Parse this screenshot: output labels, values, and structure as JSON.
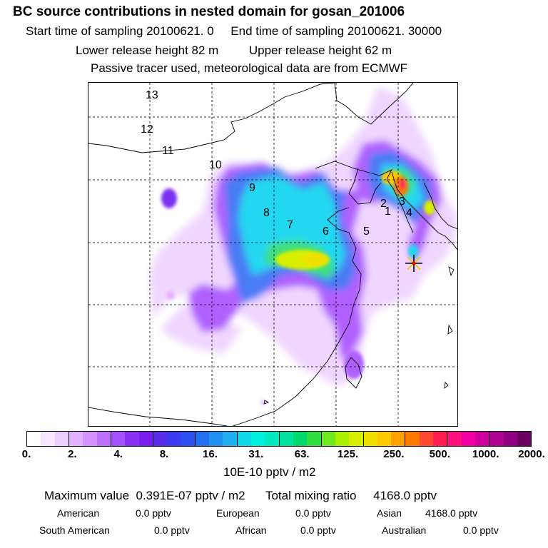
{
  "header": {
    "title": "BC  source contributions in nested domain for gosan_201006",
    "start": "Start time of sampling 20100621.     0",
    "end": "End time of sampling 20100621. 30000",
    "lower": "Lower release height   82 m",
    "upper": "Upper release height   62 m",
    "note": "Passive tracer used, meteorological data are from ECMWF"
  },
  "map": {
    "station_marker": "asterisk-star",
    "trajectory_labels": [
      "13",
      "12",
      "11",
      "10",
      "9",
      "8",
      "7",
      "6",
      "5",
      "4",
      "3",
      "2",
      "1"
    ]
  },
  "colorbar": {
    "ticks": [
      "0.",
      "2.",
      "4.",
      "8.",
      "16.",
      "31.",
      "63.",
      "125.",
      "250.",
      "500.",
      "1000.",
      "2000."
    ],
    "unit": "10E-10 pptv / m2",
    "colors": [
      "#ffffff",
      "#f6e6ff",
      "#edccff",
      "#e2b0ff",
      "#d292ff",
      "#c070ff",
      "#a550ff",
      "#8a30f5",
      "#7a1ef0",
      "#5a2ee8",
      "#3a3af0",
      "#2a50f0",
      "#2070f0",
      "#2090f0",
      "#20b0f0",
      "#10d8e8",
      "#00f0e0",
      "#00e8c0",
      "#00e0a0",
      "#00d870",
      "#30e040",
      "#70e820",
      "#a8f000",
      "#d8f000",
      "#f0e000",
      "#ffc800",
      "#ffa000",
      "#ff7800",
      "#ff4830",
      "#ff2050",
      "#ff1080",
      "#f000a0",
      "#d000a0",
      "#b00090",
      "#900080",
      "#6a0060"
    ]
  },
  "summary": {
    "max_label": "Maximum value",
    "max_value": "0.391E-07 pptv / m2",
    "total_label": "Total mixing ratio",
    "total_value": "4168.0 pptv",
    "regions": [
      {
        "name": "American",
        "value": "0.0 pptv"
      },
      {
        "name": "European",
        "value": "0.0 pptv"
      },
      {
        "name": "Asian",
        "value": "4168.0 pptv"
      },
      {
        "name": "South American",
        "value": "0.0 pptv"
      },
      {
        "name": "African",
        "value": "0.0 pptv"
      },
      {
        "name": "Australian",
        "value": "0.0 pptv"
      }
    ]
  }
}
